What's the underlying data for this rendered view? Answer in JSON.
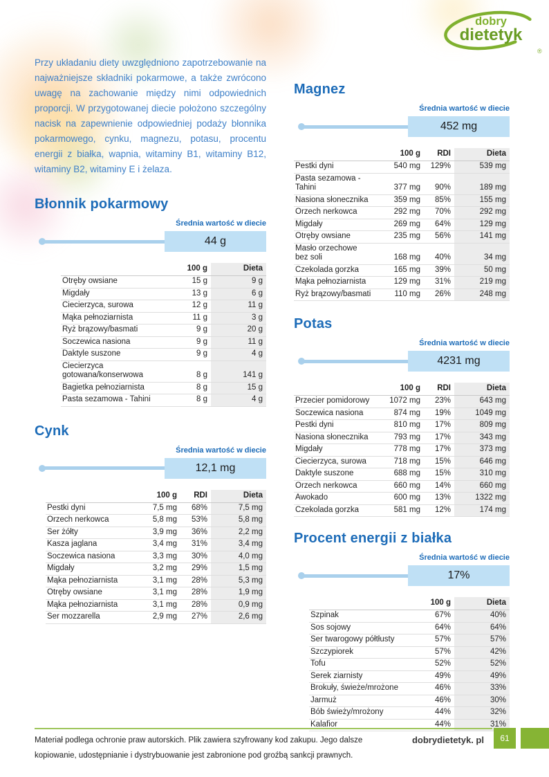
{
  "logo": {
    "line1": "dobry",
    "line2": "dietetyk",
    "reg": "®"
  },
  "intro": {
    "text": "Przy układaniu diety uwzględniono zapotrzebowanie na najważniejsze składniki pokarmowe, a także zwrócono uwagę na zachowanie między nimi odpowiednich proporcji. W przygotowanej diecie położono szczególny nacisk na zapewnienie odpowiedniej podaży błonnika pokarmowego, cynku, magnezu, potasu, procentu energii z białka, wapnia, witaminy B1, witaminy B12, witaminy B2, witaminy E i żelaza."
  },
  "sections": [
    {
      "title": "Błonnik pokarmowy",
      "avg_label": "Średnia wartość w diecie",
      "avg_value": "44 g",
      "columns": [
        "100 g",
        "Dieta"
      ],
      "rows": [
        [
          "Otręby owsiane",
          "15 g",
          "9 g"
        ],
        [
          "Migdały",
          "13 g",
          "6 g"
        ],
        [
          "Ciecierzyca, surowa",
          "12 g",
          "11 g"
        ],
        [
          "Mąka pełnoziarnista",
          "11 g",
          "3 g"
        ],
        [
          "Ryż brązowy/basmati",
          "9 g",
          "20 g"
        ],
        [
          "Soczewica nasiona",
          "9 g",
          "11 g"
        ],
        [
          "Daktyle suszone",
          "9 g",
          "4 g"
        ],
        [
          "Ciecierzyca gotowana/konserwowa",
          "8 g",
          "141 g"
        ],
        [
          "Bagietka pełnoziarnista",
          "8 g",
          "15 g"
        ],
        [
          "Pasta sezamowa - Tahini",
          "8 g",
          "4 g"
        ]
      ]
    },
    {
      "title": "Cynk",
      "avg_label": "Średnia wartość w diecie",
      "avg_value": "12,1 mg",
      "columns": [
        "100 g",
        "RDI",
        "Dieta"
      ],
      "rows": [
        [
          "Pestki dyni",
          "7,5 mg",
          "68%",
          "7,5 mg"
        ],
        [
          "Orzech nerkowca",
          "5,8 mg",
          "53%",
          "5,8 mg"
        ],
        [
          "Ser żółty",
          "3,9 mg",
          "36%",
          "2,2 mg"
        ],
        [
          "Kasza jaglana",
          "3,4 mg",
          "31%",
          "3,4 mg"
        ],
        [
          "Soczewica nasiona",
          "3,3 mg",
          "30%",
          "4,0 mg"
        ],
        [
          "Migdały",
          "3,2 mg",
          "29%",
          "1,5 mg"
        ],
        [
          "Mąka pełnoziarnista",
          "3,1 mg",
          "28%",
          "5,3 mg"
        ],
        [
          "Otręby owsiane",
          "3,1 mg",
          "28%",
          "1,9 mg"
        ],
        [
          "Mąka pełnoziarnista",
          "3,1 mg",
          "28%",
          "0,9 mg"
        ],
        [
          "Ser mozzarella",
          "2,9 mg",
          "27%",
          "2,6 mg"
        ]
      ]
    },
    {
      "title": "Magnez",
      "avg_label": "Średnia wartość w diecie",
      "avg_value": "452 mg",
      "columns": [
        "100 g",
        "RDI",
        "Dieta"
      ],
      "rows": [
        [
          "Pestki dyni",
          "540 mg",
          "129%",
          "539 mg"
        ],
        [
          "Pasta sezamowa - Tahini",
          "377 mg",
          "90%",
          "189 mg"
        ],
        [
          "Nasiona słonecznika",
          "359 mg",
          "85%",
          "155 mg"
        ],
        [
          "Orzech nerkowca",
          "292 mg",
          "70%",
          "292 mg"
        ],
        [
          "Migdały",
          "269 mg",
          "64%",
          "129 mg"
        ],
        [
          "Otręby owsiane",
          "235 mg",
          "56%",
          "141 mg"
        ],
        [
          "Masło orzechowe bez soli",
          "168 mg",
          "40%",
          "34 mg"
        ],
        [
          "Czekolada gorzka",
          "165 mg",
          "39%",
          "50 mg"
        ],
        [
          "Mąka pełnoziarnista",
          "129 mg",
          "31%",
          "219 mg"
        ],
        [
          "Ryż brązowy/basmati",
          "110 mg",
          "26%",
          "248 mg"
        ]
      ]
    },
    {
      "title": "Potas",
      "avg_label": "Średnia wartość w diecie",
      "avg_value": "4231 mg",
      "columns": [
        "100 g",
        "RDI",
        "Dieta"
      ],
      "rows": [
        [
          "Przecier pomidorowy",
          "1072 mg",
          "23%",
          "643 mg"
        ],
        [
          "Soczewica nasiona",
          "874 mg",
          "19%",
          "1049 mg"
        ],
        [
          "Pestki dyni",
          "810 mg",
          "17%",
          "809 mg"
        ],
        [
          "Nasiona słonecznika",
          "793 mg",
          "17%",
          "343 mg"
        ],
        [
          "Migdały",
          "778 mg",
          "17%",
          "373 mg"
        ],
        [
          "Ciecierzyca, surowa",
          "718 mg",
          "15%",
          "646 mg"
        ],
        [
          "Daktyle suszone",
          "688 mg",
          "15%",
          "310 mg"
        ],
        [
          "Orzech nerkowca",
          "660 mg",
          "14%",
          "660 mg"
        ],
        [
          "Awokado",
          "600 mg",
          "13%",
          "1322 mg"
        ],
        [
          "Czekolada gorzka",
          "581 mg",
          "12%",
          "174 mg"
        ]
      ]
    },
    {
      "title": "Procent energii z białka",
      "avg_label": "Średnia wartość w diecie",
      "avg_value": "17%",
      "columns": [
        "100 g",
        "Dieta"
      ],
      "rows": [
        [
          "Szpinak",
          "67%",
          "40%"
        ],
        [
          "Sos sojowy",
          "64%",
          "64%"
        ],
        [
          "Ser twarogowy półtłusty",
          "57%",
          "57%"
        ],
        [
          "Szczypiorek",
          "57%",
          "42%"
        ],
        [
          "Tofu",
          "52%",
          "52%"
        ],
        [
          "Serek ziarnisty",
          "49%",
          "49%"
        ],
        [
          "Brokuły, świeże/mrożone",
          "46%",
          "33%"
        ],
        [
          "Jarmuż",
          "46%",
          "30%"
        ],
        [
          "Bób świeży/mrożony",
          "44%",
          "32%"
        ],
        [
          "Kalafior",
          "44%",
          "31%"
        ]
      ]
    }
  ],
  "footer": {
    "notice": "Materiał podlega ochronie praw autorskich. Plik zawiera szyfrowany kod zakupu. Jego dalsze kopiowanie, udostępnianie i dystrybuowanie jest zabronione pod groźbą sankcji prawnych.",
    "site": "dobrydietetyk. pl",
    "page": "61"
  },
  "colors": {
    "accent_blue": "#1d6cb8",
    "light_blue": "#bfe0f5",
    "slider_blue": "#a9d0ec",
    "brand_green": "#86b434",
    "rule_green": "#9dc55a",
    "dieta_gray": "#ececec"
  }
}
